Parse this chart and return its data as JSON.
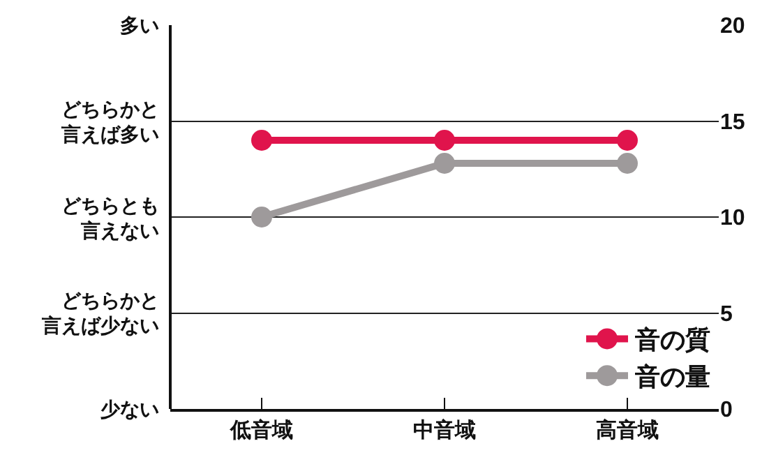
{
  "chart_data": {
    "type": "line",
    "categories": [
      "低音域",
      "中音域",
      "高音域"
    ],
    "series": [
      {
        "name": "音の質",
        "color": "#e0144c",
        "values": [
          14,
          14,
          14
        ]
      },
      {
        "name": "音の量",
        "color": "#9e9a9b",
        "values": [
          10,
          12.8,
          12.8
        ]
      }
    ],
    "ylim": [
      0,
      20
    ],
    "yticks": [
      0,
      5,
      10,
      15,
      20
    ],
    "annotations": [
      "少ない",
      "どちらかと言えば少ない",
      "どちらとも言えない",
      "どちらかと言えば多い",
      "多い"
    ],
    "grid": "y",
    "legend": "bottom right",
    "marker": "circle",
    "line_style": "solid"
  }
}
